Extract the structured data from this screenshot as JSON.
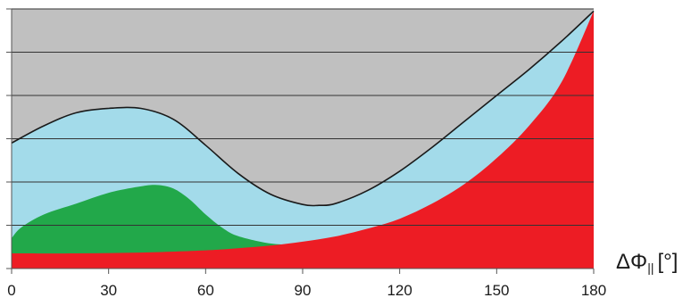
{
  "chart_data": {
    "type": "area",
    "xlabel": {
      "main": "ΔΦ",
      "sub": "||",
      "unit": "[°]"
    },
    "xlim": [
      0,
      180
    ],
    "xticks": [
      0,
      30,
      60,
      90,
      120,
      150,
      180
    ],
    "ylim": [
      0,
      6
    ],
    "grid": true,
    "y_tick_labels": false,
    "legend": "none",
    "colors": {
      "background": "#c0c0c0",
      "blue": "#a3dbea",
      "green": "#22a84a",
      "red": "#ed1c24",
      "line": "#1a1a1a",
      "grid": "#333333"
    },
    "series": [
      {
        "kind": "boundary-line",
        "color_key": "line",
        "x": [
          0,
          10,
          20,
          30,
          40,
          50,
          60,
          70,
          80,
          90,
          95,
          100,
          110,
          120,
          130,
          140,
          150,
          160,
          170,
          180
        ],
        "y": [
          2.9,
          3.3,
          3.6,
          3.7,
          3.7,
          3.45,
          2.85,
          2.2,
          1.72,
          1.48,
          1.46,
          1.5,
          1.8,
          2.25,
          2.8,
          3.4,
          4.0,
          4.6,
          5.25,
          5.95
        ]
      },
      {
        "kind": "band",
        "color_key": "blue",
        "x": [
          0,
          10,
          20,
          30,
          40,
          50,
          60,
          70,
          80,
          90,
          95,
          100,
          110,
          120,
          130,
          140,
          150,
          160,
          170,
          180
        ],
        "y": [
          2.9,
          3.3,
          3.6,
          3.7,
          3.7,
          3.45,
          2.85,
          2.2,
          1.72,
          1.48,
          1.46,
          1.5,
          1.8,
          2.25,
          2.8,
          3.4,
          4.0,
          4.6,
          5.25,
          5.95
        ]
      },
      {
        "kind": "band",
        "color_key": "green",
        "x": [
          0,
          3,
          10,
          20,
          30,
          40,
          45,
          50,
          55,
          60,
          65,
          70,
          80,
          88
        ],
        "y": [
          0.7,
          0.95,
          1.25,
          1.5,
          1.75,
          1.9,
          1.93,
          1.85,
          1.6,
          1.25,
          0.95,
          0.75,
          0.58,
          0.55
        ]
      },
      {
        "kind": "band",
        "color_key": "red",
        "x": [
          0,
          20,
          40,
          60,
          70,
          80,
          90,
          100,
          110,
          120,
          130,
          140,
          150,
          160,
          170,
          180
        ],
        "y": [
          0.35,
          0.35,
          0.37,
          0.42,
          0.47,
          0.53,
          0.62,
          0.74,
          0.92,
          1.15,
          1.5,
          1.95,
          2.55,
          3.3,
          4.3,
          5.95
        ]
      }
    ]
  }
}
